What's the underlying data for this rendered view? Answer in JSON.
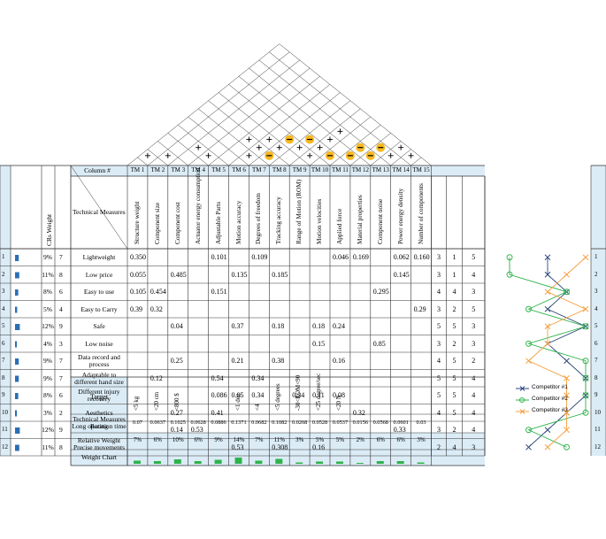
{
  "header": {
    "column_label": "Column #",
    "technical_measures_label": "Technical Measures",
    "cr_weight_label": "CRs Weight"
  },
  "tm_labels": [
    "TM 1",
    "TM 2",
    "TM 3",
    "TM 4",
    "TM 5",
    "TM 6",
    "TM 7",
    "TM 8",
    "TM 9",
    "TM 10",
    "TM 11",
    "TM 12",
    "TM 13",
    "TM 14",
    "TM 15"
  ],
  "technical_measures": [
    "Structure weight",
    "Component size",
    "Component cost",
    "Actuator energy consumption",
    "Adjustable Parts",
    "Motion accuracy",
    "Degrees of freedom",
    "Tracking accuracy",
    "Range of Motion (ROM)",
    "Motion velocities",
    "Applied force",
    "Material properties",
    "Component noise",
    "Power energy density",
    "Number of components"
  ],
  "requirements": [
    {
      "num": "1",
      "weight": "9%",
      "w": 7,
      "name": "Lightweight",
      "cells": {
        "0": "0.350",
        "4": "0.101",
        "6": "0.109",
        "10": "0.046",
        "11": "0.169",
        "13": "0.062",
        "14": "0.160"
      },
      "comp": [
        "3",
        "1",
        "5"
      ]
    },
    {
      "num": "2",
      "weight": "11%",
      "w": 8,
      "name": "Low price",
      "cells": {
        "0": "0.055",
        "2": "0.485",
        "5": "0.135",
        "7": "0.185",
        "13": "0.145"
      },
      "comp": [
        "3",
        "1",
        "4"
      ]
    },
    {
      "num": "3",
      "weight": "8%",
      "w": 6,
      "name": "Easy to use",
      "cells": {
        "0": "0.105",
        "1": "0.454",
        "4": "0.151",
        "12": "0.295"
      },
      "comp": [
        "4",
        "4",
        "3"
      ]
    },
    {
      "num": "4",
      "weight": "5%",
      "w": 4,
      "name": "Easy to Carry",
      "cells": {
        "0": "0.39",
        "1": "0.32",
        "14": "0.29"
      },
      "comp": [
        "3",
        "2",
        "5"
      ]
    },
    {
      "num": "5",
      "weight": "12%",
      "w": 9,
      "name": "Safe",
      "cells": {
        "2": "0.04",
        "5": "0.37",
        "7": "0.18",
        "9": "0.18",
        "10": "0.24"
      },
      "comp": [
        "5",
        "5",
        "3"
      ]
    },
    {
      "num": "6",
      "weight": "4%",
      "w": 3,
      "name": "Low noise",
      "cells": {
        "9": "0.15",
        "12": "0.85"
      },
      "comp": [
        "3",
        "2",
        "3"
      ]
    },
    {
      "num": "7",
      "weight": "9%",
      "w": 7,
      "name": "Data record and process",
      "cells": {
        "2": "0.25",
        "5": "0.21",
        "7": "0.38",
        "10": "0.16"
      },
      "comp": [
        "4",
        "5",
        "2"
      ]
    },
    {
      "num": "8",
      "weight": "9%",
      "w": 7,
      "name": "Adaptable to different hand size",
      "cells": {
        "1": "0.12",
        "4": "0.54",
        "6": "0.34"
      },
      "comp": [
        "5",
        "5",
        "4"
      ]
    },
    {
      "num": "9",
      "weight": "8%",
      "w": 6,
      "name": "Different injury recovery",
      "cells": {
        "4": "0.086",
        "5": "0.05",
        "6": "0.34",
        "8": "0.34",
        "9": "0.11",
        "10": "0.08"
      },
      "comp": [
        "5",
        "5",
        "4"
      ]
    },
    {
      "num": "10",
      "weight": "3%",
      "w": 2,
      "name": "Aesthetics",
      "cells": {
        "2": "0.27",
        "4": "0.41",
        "11": "0.32"
      },
      "comp": [
        "4",
        "5",
        "4"
      ]
    },
    {
      "num": "11",
      "weight": "12%",
      "w": 9,
      "name": "Long operation time",
      "cells": {
        "2": "0.14",
        "3": "0.53",
        "13": "0.33"
      },
      "comp": [
        "3",
        "2",
        "4"
      ]
    },
    {
      "num": "12",
      "weight": "11%",
      "w": 8,
      "name": "Precise movements",
      "cells": {
        "5": "0.53",
        "7": "0.308",
        "9": "0.16"
      },
      "comp": [
        "2",
        "4",
        "3"
      ]
    }
  ],
  "target": {
    "label": "Target",
    "values": [
      "<5 kg",
      "<20 cm",
      "<800 $",
      "",
      "",
      "<1 deg",
      "<4",
      "<5 degrees",
      "-30<ROM<90",
      "<25 degree/sec",
      "<20 N",
      "",
      "",
      "",
      ""
    ]
  },
  "rating": {
    "label": "Technical Measures Rating",
    "values": [
      "0.07",
      "0.0637",
      "0.1025",
      "0.0628",
      "0.0886",
      "0.1371",
      "0.0682",
      "0.1082",
      "0.0268",
      "0.0528",
      "0.0537",
      "0.0156",
      "0.0568",
      "0.0601",
      "0.03"
    ]
  },
  "relative": {
    "label": "Relative Weight",
    "values": [
      "7%",
      "6%",
      "10%",
      "6%",
      "9%",
      "14%",
      "7%",
      "11%",
      "3%",
      "5%",
      "5%",
      "2%",
      "6%",
      "6%",
      "3%"
    ],
    "pct": [
      7,
      6,
      10,
      6,
      9,
      14,
      7,
      11,
      3,
      5,
      5,
      2,
      6,
      6,
      3
    ]
  },
  "weight_chart_label": "Weight Chart",
  "roof": {
    "minus": [
      [
        7,
        8
      ],
      [
        10,
        11
      ],
      [
        12,
        14
      ],
      [
        12,
        13
      ],
      [
        11,
        13
      ],
      [
        11,
        12
      ],
      [
        8,
        11
      ],
      [
        7,
        10
      ]
    ],
    "plus": [
      [
        14,
        15
      ],
      [
        13,
        15
      ],
      [
        13,
        14
      ],
      [
        9,
        13
      ],
      [
        9,
        12
      ],
      [
        9,
        11
      ],
      [
        9,
        10
      ],
      [
        8,
        10
      ],
      [
        7,
        9
      ],
      [
        6,
        9
      ],
      [
        6,
        8
      ],
      [
        6,
        7
      ],
      [
        5,
        8
      ],
      [
        4,
        5
      ],
      [
        3,
        5
      ],
      [
        2,
        3
      ],
      [
        1,
        2
      ]
    ]
  },
  "competitors": [
    {
      "name": "Competitor #1",
      "color": "#2e4a7d"
    },
    {
      "name": "Competitor #2",
      "color": "#2db34a"
    },
    {
      "name": "Competitor #3",
      "color": "#f5a040"
    }
  ],
  "colors": {
    "header_bg": "#dcecf6",
    "bar": "#2a6fb5",
    "weight_bar": "#2db34a",
    "minus_bg": "#f7b820"
  }
}
